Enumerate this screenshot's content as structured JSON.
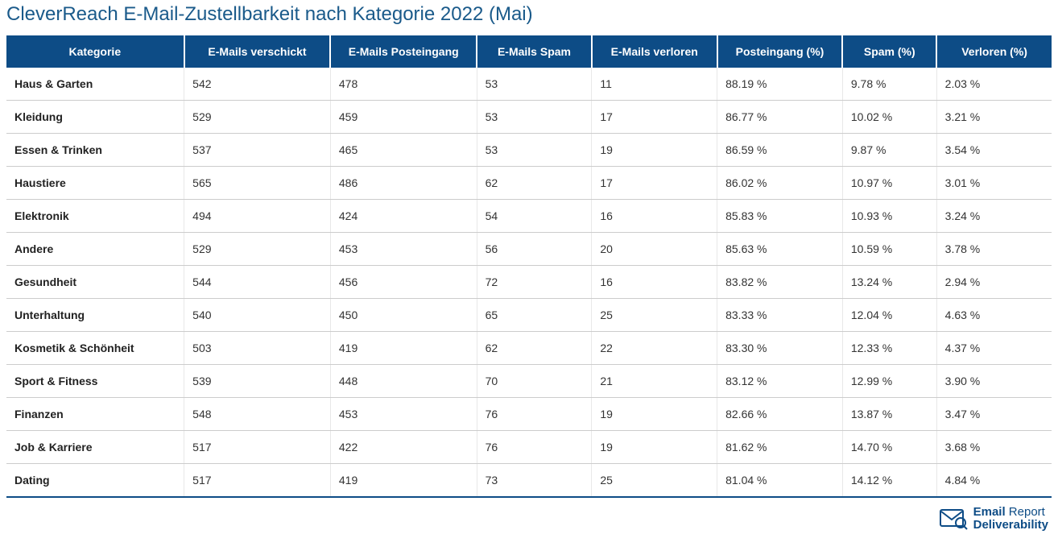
{
  "title": "CleverReach E-Mail-Zustellbarkeit nach Kategorie 2022 (Mai)",
  "table": {
    "type": "table",
    "header_bg": "#0d4c86",
    "header_fg": "#ffffff",
    "row_border": "#cccccc",
    "bottom_border": "#0d4c86",
    "text_color": "#333333",
    "first_col_bold": true,
    "columns": [
      "Kategorie",
      "E-Mails verschickt",
      "E-Mails Posteingang",
      "E-Mails Spam",
      "E-Mails verloren",
      "Posteingang (%)",
      "Spam (%)",
      "Verloren (%)"
    ],
    "rows": [
      [
        "Haus & Garten",
        "542",
        "478",
        "53",
        "11",
        "88.19 %",
        "9.78 %",
        "2.03 %"
      ],
      [
        "Kleidung",
        "529",
        "459",
        "53",
        "17",
        "86.77 %",
        "10.02 %",
        "3.21 %"
      ],
      [
        "Essen & Trinken",
        "537",
        "465",
        "53",
        "19",
        "86.59 %",
        "9.87 %",
        "3.54 %"
      ],
      [
        "Haustiere",
        "565",
        "486",
        "62",
        "17",
        "86.02 %",
        "10.97 %",
        "3.01 %"
      ],
      [
        "Elektronik",
        "494",
        "424",
        "54",
        "16",
        "85.83 %",
        "10.93 %",
        "3.24 %"
      ],
      [
        "Andere",
        "529",
        "453",
        "56",
        "20",
        "85.63 %",
        "10.59 %",
        "3.78 %"
      ],
      [
        "Gesundheit",
        "544",
        "456",
        "72",
        "16",
        "83.82 %",
        "13.24 %",
        "2.94 %"
      ],
      [
        "Unterhaltung",
        "540",
        "450",
        "65",
        "25",
        "83.33 %",
        "12.04 %",
        "4.63 %"
      ],
      [
        "Kosmetik & Schönheit",
        "503",
        "419",
        "62",
        "22",
        "83.30 %",
        "12.33 %",
        "4.37 %"
      ],
      [
        "Sport & Fitness",
        "539",
        "448",
        "70",
        "21",
        "83.12 %",
        "12.99 %",
        "3.90 %"
      ],
      [
        "Finanzen",
        "548",
        "453",
        "76",
        "19",
        "82.66 %",
        "13.87 %",
        "3.47 %"
      ],
      [
        "Job & Karriere",
        "517",
        "422",
        "76",
        "19",
        "81.62 %",
        "14.70 %",
        "3.68 %"
      ],
      [
        "Dating",
        "517",
        "419",
        "73",
        "25",
        "81.04 %",
        "14.12 %",
        "4.84 %"
      ]
    ]
  },
  "logo": {
    "line1_prefix": "Email",
    "line1_suffix": " Report",
    "line2": "Deliverability",
    "color": "#0d4c86"
  }
}
